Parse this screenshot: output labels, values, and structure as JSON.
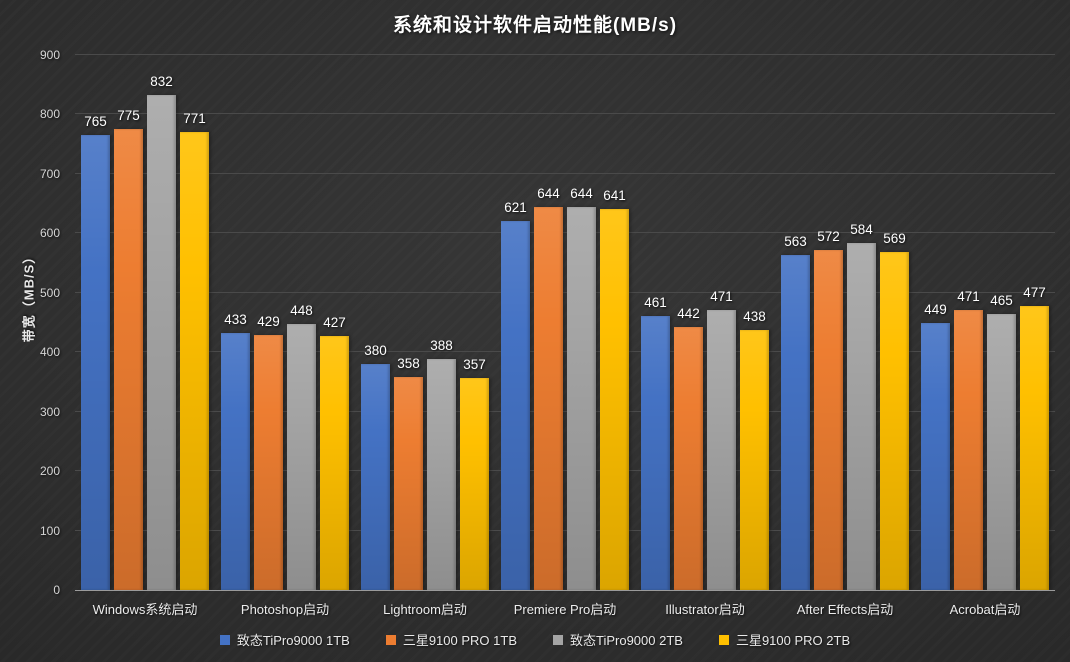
{
  "chart_data": {
    "type": "bar",
    "title": "系统和设计软件启动性能(MB/s)",
    "ylabel": "带宽（MB/S）",
    "xlabel": "",
    "ylim": [
      0,
      900
    ],
    "yticks": [
      0,
      100,
      200,
      300,
      400,
      500,
      600,
      700,
      800,
      900
    ],
    "grid": true,
    "legend_position": "bottom",
    "categories": [
      "Windows系统启动",
      "Photoshop启动",
      "Lightroom启动",
      "Premiere Pro启动",
      "Illustrator启动",
      "After Effects启动",
      "Acrobat启动"
    ],
    "series": [
      {
        "name": "致态TiPro9000 1TB",
        "color": "#4472C4",
        "values": [
          765,
          433,
          380,
          621,
          461,
          563,
          449
        ]
      },
      {
        "name": "三星9100 PRO 1TB",
        "color": "#ED7D31",
        "values": [
          775,
          429,
          358,
          644,
          442,
          572,
          471
        ]
      },
      {
        "name": "致态TiPro9000 2TB",
        "color": "#A5A5A5",
        "values": [
          832,
          448,
          388,
          644,
          471,
          584,
          465
        ]
      },
      {
        "name": "三星9100 PRO 2TB",
        "color": "#FFC000",
        "values": [
          771,
          427,
          357,
          641,
          438,
          569,
          477
        ]
      }
    ],
    "style": {
      "background": "#2b2b2b",
      "gridline_color": "#4a4a4a",
      "axis_line_color": "#9b9b9b",
      "text_color": "#ffffff"
    }
  }
}
